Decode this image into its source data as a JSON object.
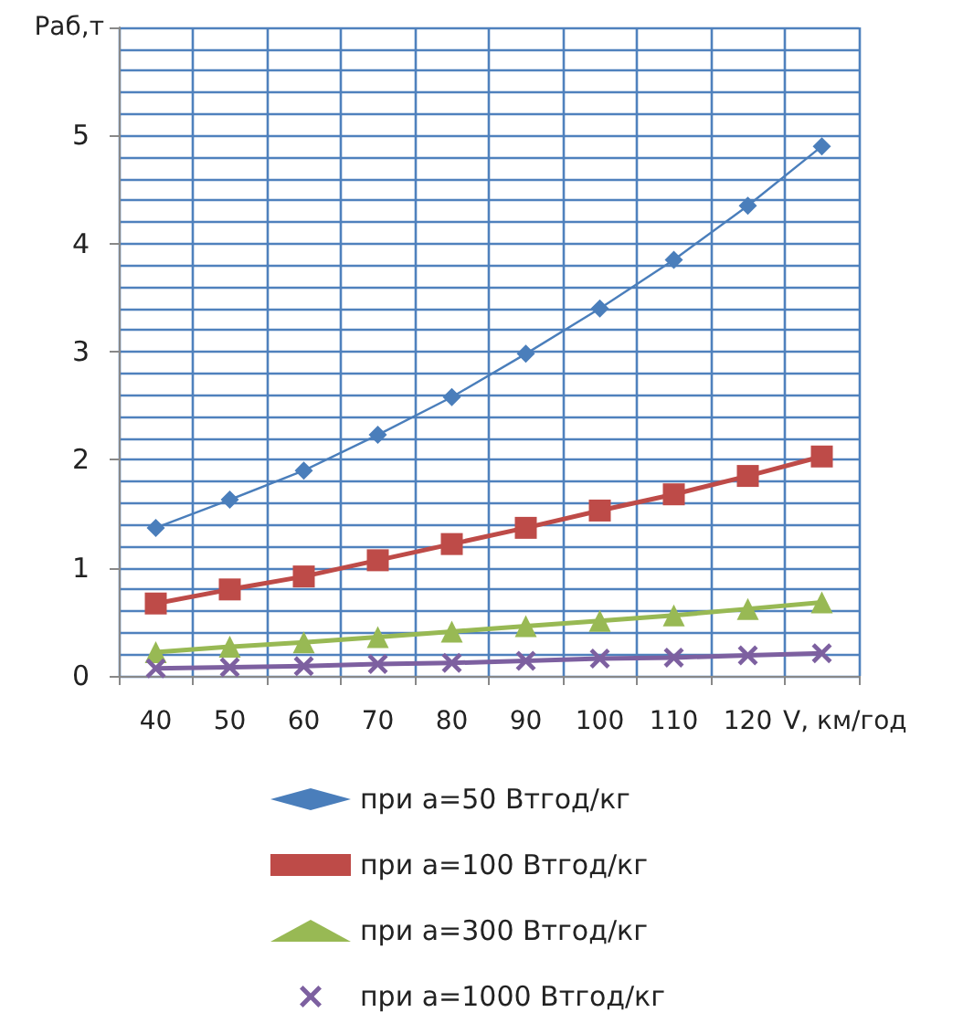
{
  "chart_data": {
    "type": "line",
    "xlabel": "V, км/год",
    "ylabel": "Раб,т",
    "categories": [
      "40",
      "50",
      "60",
      "70",
      "80",
      "90",
      "100",
      "110",
      "120",
      null
    ],
    "ylim": [
      0,
      6
    ],
    "yticks": [
      0,
      1,
      2,
      3,
      4,
      5,
      {
        "value": 6,
        "label": null
      }
    ],
    "grid": true,
    "legend": "bottom",
    "series": [
      {
        "name": "при а=50 Втгод/кг",
        "color": "#4a7ebb",
        "marker": "diamond",
        "values": [
          1.37,
          1.63,
          1.9,
          2.23,
          2.58,
          2.98,
          3.4,
          3.85,
          4.35,
          4.9
        ]
      },
      {
        "name": "при а=100 Втгод/кг",
        "color": "#be4b48",
        "marker": "square",
        "values": [
          0.67,
          0.8,
          0.92,
          1.07,
          1.22,
          1.37,
          1.53,
          1.68,
          1.85,
          2.03
        ]
      },
      {
        "name": "при а=300 Втгод/кг",
        "color": "#98b954",
        "marker": "triangle",
        "values": [
          0.22,
          0.27,
          0.31,
          0.36,
          0.41,
          0.46,
          0.51,
          0.56,
          0.62,
          0.68
        ]
      },
      {
        "name": "при а=1000 Втгод/кг",
        "color": "#7d60a0",
        "marker": "cross",
        "values": [
          0.07,
          0.08,
          0.09,
          0.11,
          0.12,
          0.14,
          0.16,
          0.17,
          0.19,
          0.21
        ]
      }
    ]
  }
}
